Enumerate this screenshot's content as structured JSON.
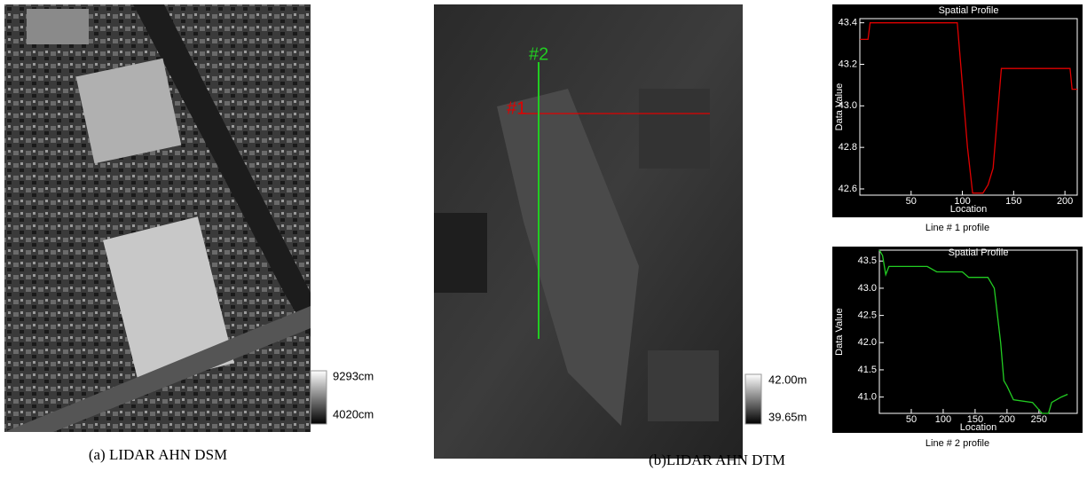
{
  "panels": [
    {
      "caption": "(a) LIDAR AHN DSM",
      "colorbar": {
        "max_label": "9293cm",
        "min_label": "4020cm"
      }
    },
    {
      "caption": "(b)LIDAR AHN DTM",
      "colorbar": {
        "max_label": "42.00m",
        "min_label": "39.65m"
      },
      "lines": [
        {
          "label": "#1",
          "color": "#e00000"
        },
        {
          "label": "#2",
          "color": "#22cc22"
        }
      ]
    }
  ],
  "chart_data": [
    {
      "type": "line",
      "title": "Spatial Profile",
      "xlabel": "Location",
      "ylabel": "Data Value",
      "caption": "Line # 1 profile",
      "x": [
        0,
        8,
        10,
        95,
        100,
        105,
        110,
        120,
        125,
        130,
        135,
        138,
        205,
        207,
        212
      ],
      "series": [
        {
          "color": "#e00000",
          "values": [
            43.32,
            43.32,
            43.4,
            43.4,
            43.1,
            42.8,
            42.58,
            42.58,
            42.62,
            42.7,
            43.0,
            43.18,
            43.18,
            43.08,
            43.08
          ]
        }
      ],
      "xlim": [
        0,
        212
      ],
      "ylim": [
        42.57,
        43.42
      ],
      "xticks": [
        50,
        100,
        150,
        200
      ],
      "yticks": [
        42.6,
        42.8,
        {
          "value": 43,
          "label": "43.0"
        },
        43.2,
        43.4
      ]
    },
    {
      "type": "line",
      "title": "Spatial Profile",
      "xlabel": "Location",
      "ylabel": "Data Value",
      "caption": "Line # 2 profile",
      "x": [
        0,
        5,
        10,
        15,
        75,
        90,
        130,
        140,
        170,
        180,
        190,
        195,
        200,
        210,
        240,
        255,
        265,
        270,
        285,
        295
      ],
      "series": [
        {
          "color": "#22cc22",
          "values": [
            43.7,
            43.6,
            43.25,
            43.4,
            43.4,
            43.3,
            43.3,
            43.2,
            43.2,
            43.0,
            42.0,
            41.3,
            41.2,
            40.95,
            40.9,
            40.7,
            40.7,
            40.9,
            41.0,
            41.05
          ]
        }
      ],
      "xlim": [
        0,
        310
      ],
      "ylim": [
        40.7,
        43.7
      ],
      "xticks": [
        50,
        100,
        150,
        200,
        250
      ],
      "yticks": [
        {
          "value": 41,
          "label": "41.0"
        },
        41.5,
        {
          "value": 42,
          "label": "42.0"
        },
        42.5,
        {
          "value": 43,
          "label": "43.0"
        },
        43.5
      ]
    }
  ]
}
